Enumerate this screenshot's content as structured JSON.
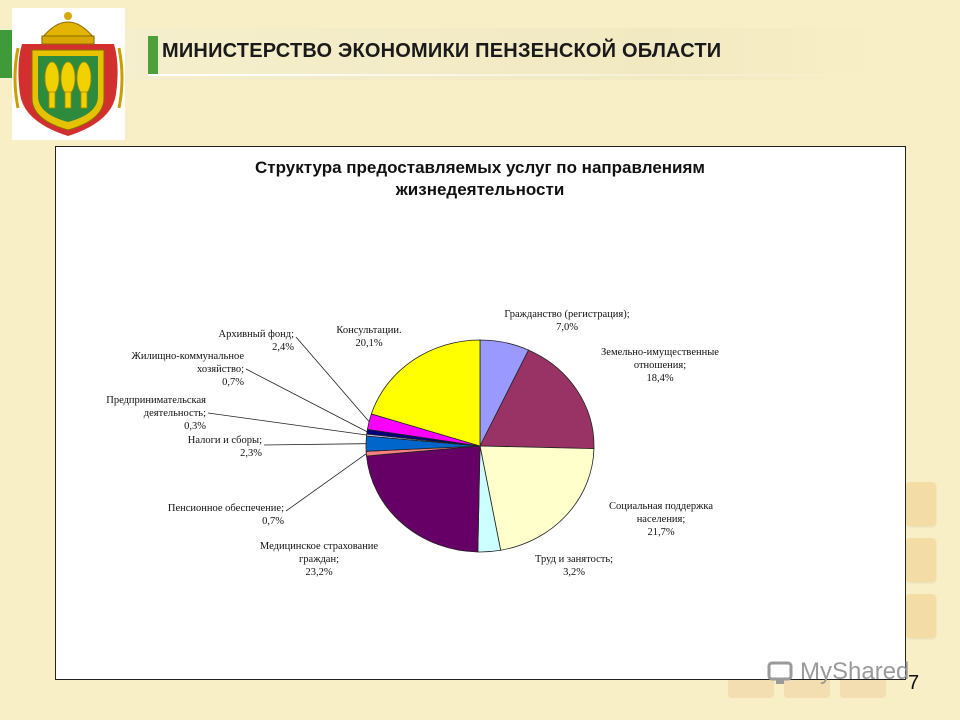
{
  "header": {
    "title": "МИНИСТЕРСТВО ЭКОНОМИКИ ПЕНЗЕНСКОЙ ОБЛАСТИ"
  },
  "emblem": {
    "icon": "pensa-coat-of-arms-icon"
  },
  "colors": {
    "background": "#f9efc6",
    "accent_green": "#4f9f3a"
  },
  "chart_data": {
    "type": "pie",
    "title": "Структура предоставляемых услуг по направлениям жизнедеятельности",
    "title_lines": [
      "Структура предоставляемых услуг по направлениям",
      "жизнедеятельности"
    ],
    "slices": [
      {
        "label": "Гражданство (регистрация);",
        "label_lines": [
          "Гражданство (регистрация);",
          "7,0%"
        ],
        "value": 7.0,
        "value_label": "7,0%",
        "color": "#9999ff"
      },
      {
        "label": "Земельно-имущественные отношения;",
        "label_lines": [
          "Земельно-имущественные",
          "отношения;",
          "18,4%"
        ],
        "value": 18.4,
        "value_label": "18,4%",
        "color": "#993366"
      },
      {
        "label": "Социальная поддержка населения;",
        "label_lines": [
          "Социальная поддержка",
          "населения;",
          "21,7%"
        ],
        "value": 21.7,
        "value_label": "21,7%",
        "color": "#ffffcc"
      },
      {
        "label": "Труд и занятость;",
        "label_lines": [
          "Труд и занятость;",
          "3,2%"
        ],
        "value": 3.2,
        "value_label": "3,2%",
        "color": "#ccffff"
      },
      {
        "label": "Медицинское страхование граждан;",
        "label_lines": [
          "Медицинское страхование",
          "граждан;",
          "23,2%"
        ],
        "value": 23.2,
        "value_label": "23,2%",
        "color": "#660066"
      },
      {
        "label": "Пенсионное обеспечение;",
        "label_lines": [
          "Пенсионное обеспечение;",
          "0,7%"
        ],
        "value": 0.7,
        "value_label": "0,7%",
        "color": "#ff8080"
      },
      {
        "label": "Налоги и сборы;",
        "label_lines": [
          "Налоги и сборы;",
          "2,3%"
        ],
        "value": 2.3,
        "value_label": "2,3%",
        "color": "#0066cc"
      },
      {
        "label": "Предпринимательская деятельность;",
        "label_lines": [
          "Предпринимательская",
          "деятельность;",
          "0,3%"
        ],
        "value": 0.3,
        "value_label": "0,3%",
        "color": "#ccccff"
      },
      {
        "label": "Жилищно-коммунальное хозяйство;",
        "label_lines": [
          "Жилищно-коммунальное",
          "хозяйство;",
          "0,7%"
        ],
        "value": 0.7,
        "value_label": "0,7%",
        "color": "#000080"
      },
      {
        "label": "Архивный фонд;",
        "label_lines": [
          "Архивный фонд;",
          "2,4%"
        ],
        "value": 2.4,
        "value_label": "2,4%",
        "color": "#ff00ff"
      },
      {
        "label": "Консультации.",
        "label_lines": [
          "Консультации.",
          "20,1%"
        ],
        "value": 20.1,
        "value_label": "20,1%",
        "color": "#ffff00"
      }
    ],
    "legend": "none"
  },
  "watermark": {
    "text": "MyShared"
  },
  "page_number": "7"
}
